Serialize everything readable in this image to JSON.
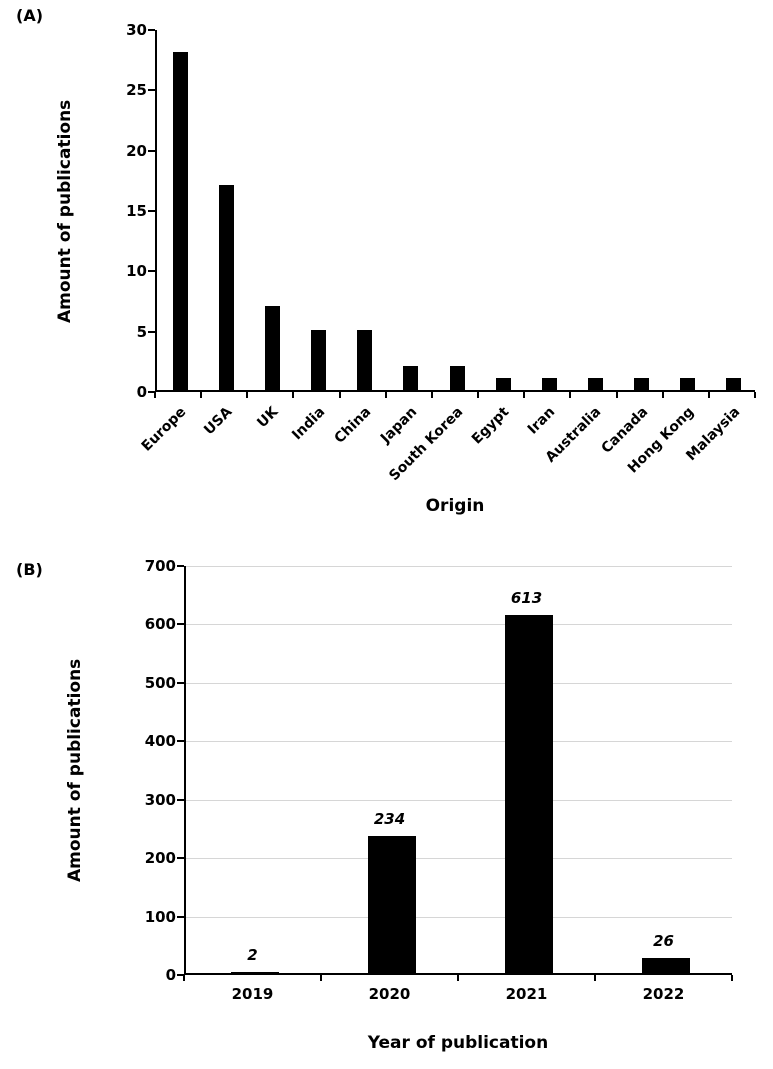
{
  "panels": [
    {
      "label": "(A)"
    },
    {
      "label": "(B)"
    }
  ],
  "chart_data": [
    {
      "type": "bar",
      "categories": [
        "Europe",
        "USA",
        "UK",
        "India",
        "China",
        "Japan",
        "South Korea",
        "Egypt",
        "Iran",
        "Australia",
        "Canada",
        "Hong Kong",
        "Malaysia"
      ],
      "values": [
        28,
        17,
        7,
        5,
        5,
        2,
        2,
        1,
        1,
        1,
        1,
        1,
        1
      ],
      "xlabel": "Origin",
      "ylabel": "Amount of publications",
      "ylim": [
        0,
        30
      ],
      "yticks": [
        0,
        5,
        10,
        15,
        20,
        25,
        30
      ],
      "grid": false,
      "legend_position": "none",
      "bar_color": "#000000"
    },
    {
      "type": "bar",
      "categories": [
        "2019",
        "2020",
        "2021",
        "2022"
      ],
      "values": [
        2,
        234,
        613,
        26
      ],
      "data_labels": [
        "2",
        "234",
        "613",
        "26"
      ],
      "xlabel": "Year of publication",
      "ylabel": "Amount of publications",
      "ylim": [
        0,
        700
      ],
      "yticks": [
        0,
        100,
        200,
        300,
        400,
        500,
        600,
        700
      ],
      "grid": true,
      "gridline_color": "#d6d6d6",
      "legend_position": "none",
      "bar_color": "#000000"
    }
  ]
}
